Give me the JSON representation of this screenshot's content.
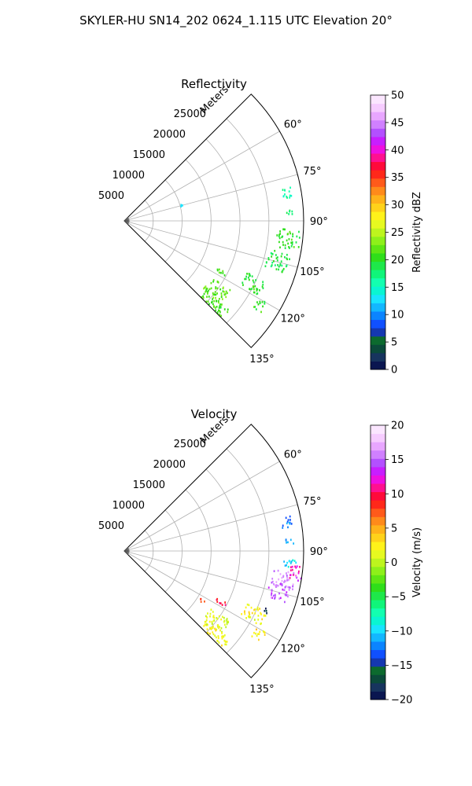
{
  "suptitle": "SKYLER-HU  SN14_202  0624_1.115 UTC Elevation 20°",
  "chart_data": [
    {
      "type": "polar-sector",
      "title": "Reflectivity",
      "radial_label": "Meters",
      "radial_ticks": [
        5000,
        10000,
        15000,
        20000,
        25000
      ],
      "radial_tick_labels": [
        "5000",
        "10000",
        "15000",
        "20000",
        "25000"
      ],
      "rlim": [
        0,
        31000
      ],
      "angle_ticks": [
        60,
        75,
        90,
        105,
        120,
        135
      ],
      "angle_tick_labels": [
        "60°",
        "75°",
        "90°",
        "105°",
        "120°",
        "135°"
      ],
      "theta_range_deg": [
        45,
        135
      ],
      "grid": true,
      "colorbar": {
        "label": "Reflectivity dBZ",
        "range": [
          0,
          50
        ],
        "ticks": [
          0,
          5,
          10,
          15,
          20,
          25,
          30,
          35,
          40,
          45,
          50
        ],
        "tick_labels": [
          "0",
          "5",
          "10",
          "15",
          "20",
          "25",
          "30",
          "35",
          "40",
          "45",
          "50"
        ]
      },
      "echo_clusters": [
        {
          "az_range": [
            78,
            82
          ],
          "r_range": [
            27500,
            29500
          ],
          "value": 16
        },
        {
          "az_range": [
            86,
            88
          ],
          "r_range": [
            28000,
            29500
          ],
          "value": 18
        },
        {
          "az_range": [
            93,
            100
          ],
          "r_range": [
            26500,
            30500
          ],
          "value": 20
        },
        {
          "az_range": [
            101,
            108
          ],
          "r_range": [
            25500,
            29500
          ],
          "value": 19
        },
        {
          "az_range": [
            113,
            119
          ],
          "r_range": [
            23000,
            27000
          ],
          "value": 20
        },
        {
          "az_range": [
            117,
            119
          ],
          "r_range": [
            18000,
            20000
          ],
          "value": 21
        },
        {
          "az_range": [
            120,
            124
          ],
          "r_range": [
            26500,
            28500
          ],
          "value": 20
        },
        {
          "az_range": [
            123,
            131
          ],
          "r_range": [
            18000,
            22000
          ],
          "value": 22
        },
        {
          "az_range": [
            130,
            135
          ],
          "r_range": [
            18500,
            24000
          ],
          "value": 21
        },
        {
          "az_range": [
            74,
            76
          ],
          "r_range": [
            10000,
            10800
          ],
          "value": 13
        }
      ]
    },
    {
      "type": "polar-sector",
      "title": "Velocity",
      "radial_label": "Meters",
      "radial_ticks": [
        5000,
        10000,
        15000,
        20000,
        25000
      ],
      "radial_tick_labels": [
        "5000",
        "10000",
        "15000",
        "20000",
        "25000"
      ],
      "rlim": [
        0,
        31000
      ],
      "angle_ticks": [
        60,
        75,
        90,
        105,
        120,
        135
      ],
      "angle_tick_labels": [
        "60°",
        "75°",
        "90°",
        "105°",
        "120°",
        "135°"
      ],
      "theta_range_deg": [
        45,
        135
      ],
      "grid": true,
      "colorbar": {
        "label": "Velocity (m/s)",
        "range": [
          -20,
          20
        ],
        "ticks": [
          -20,
          -15,
          -10,
          -5,
          0,
          5,
          10,
          15,
          20
        ],
        "tick_labels": [
          "−20",
          "−15",
          "−10",
          "−5",
          "0",
          "5",
          "10",
          "15",
          "20"
        ]
      },
      "echo_clusters": [
        {
          "az_range": [
            78,
            82
          ],
          "r_range": [
            27500,
            29500
          ],
          "value": -12
        },
        {
          "az_range": [
            86,
            88
          ],
          "r_range": [
            28000,
            29500
          ],
          "value": -11
        },
        {
          "az_range": [
            93,
            96
          ],
          "r_range": [
            27500,
            30000
          ],
          "value": -10
        },
        {
          "az_range": [
            95,
            100
          ],
          "r_range": [
            28500,
            31000
          ],
          "value": 12
        },
        {
          "az_range": [
            97,
            103
          ],
          "r_range": [
            26000,
            30000
          ],
          "value": 16
        },
        {
          "az_range": [
            102,
            108
          ],
          "r_range": [
            25500,
            29500
          ],
          "value": 15
        },
        {
          "az_range": [
            112,
            114
          ],
          "r_range": [
            26000,
            27000
          ],
          "value": -18
        },
        {
          "az_range": [
            113,
            119
          ],
          "r_range": [
            23000,
            27000
          ],
          "value": 2
        },
        {
          "az_range": [
            117,
            119
          ],
          "r_range": [
            18000,
            20000
          ],
          "value": 10
        },
        {
          "az_range": [
            120,
            124
          ],
          "r_range": [
            26500,
            28500
          ],
          "value": 3
        },
        {
          "az_range": [
            123,
            131
          ],
          "r_range": [
            18000,
            22000
          ],
          "value": 1
        },
        {
          "az_range": [
            130,
            135
          ],
          "r_range": [
            18500,
            24000
          ],
          "value": 2
        },
        {
          "az_range": [
            122,
            124
          ],
          "r_range": [
            15500,
            16500
          ],
          "value": 8
        }
      ]
    }
  ]
}
